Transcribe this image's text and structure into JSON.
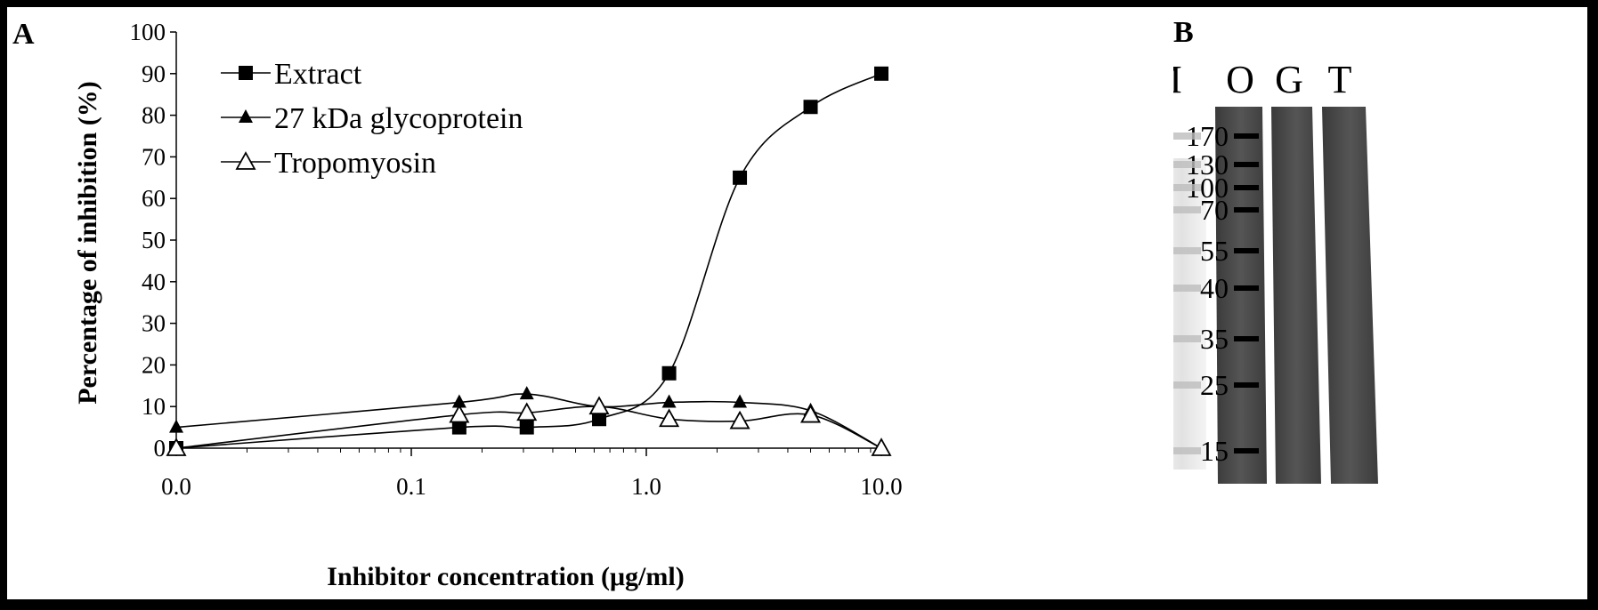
{
  "panel_a": {
    "label": "A",
    "chart_data": {
      "type": "line",
      "title": "",
      "xlabel": "Inhibitor concentration (μg/ml)",
      "ylabel": "Percentage of inhibition (%)",
      "x_scale": "log",
      "x_tick_labels": [
        "0.0",
        "0.1",
        "1.0",
        "10.0"
      ],
      "y_tick_labels": [
        "0",
        "10",
        "20",
        "30",
        "40",
        "50",
        "60",
        "70",
        "80",
        "90",
        "100"
      ],
      "ylim": [
        0,
        100
      ],
      "legend_position": "top-left",
      "series": [
        {
          "name": "Extract",
          "marker": "filled-square",
          "points": [
            [
              0.0,
              0
            ],
            [
              0.16,
              5
            ],
            [
              0.31,
              5
            ],
            [
              0.63,
              7
            ],
            [
              1.25,
              18
            ],
            [
              2.5,
              65
            ],
            [
              5.0,
              82
            ],
            [
              10.0,
              90
            ]
          ]
        },
        {
          "name": "27 kDa glycoprotein",
          "marker": "filled-triangle",
          "points": [
            [
              0.0,
              5
            ],
            [
              0.16,
              11
            ],
            [
              0.31,
              13
            ],
            [
              0.63,
              10
            ],
            [
              1.25,
              11
            ],
            [
              2.5,
              11
            ],
            [
              5.0,
              9
            ],
            [
              10.0,
              0
            ]
          ]
        },
        {
          "name": "Tropomyosin",
          "marker": "open-triangle",
          "points": [
            [
              0.0,
              0
            ],
            [
              0.16,
              8
            ],
            [
              0.31,
              8.5
            ],
            [
              0.63,
              10
            ],
            [
              1.25,
              7
            ],
            [
              2.5,
              6.5
            ],
            [
              5.0,
              8
            ],
            [
              10.0,
              0
            ]
          ]
        }
      ]
    }
  },
  "panel_b": {
    "label": "B",
    "lanes": [
      "M",
      "O",
      "G",
      "T"
    ],
    "markers_kda": [
      "170",
      "130",
      "100",
      "70",
      "55",
      "40",
      "35",
      "25",
      "15"
    ]
  }
}
